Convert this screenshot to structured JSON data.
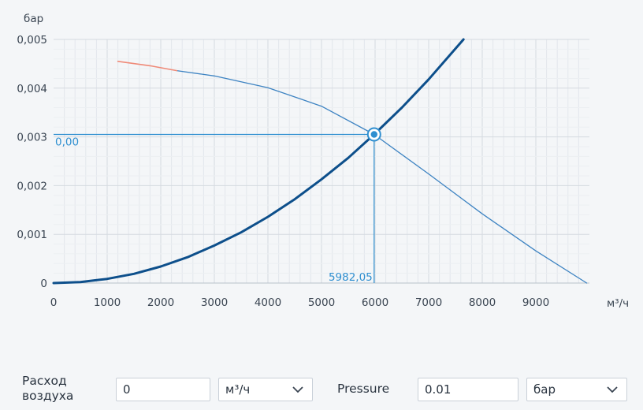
{
  "chart_data": {
    "type": "line",
    "x_unit": "м³/ч",
    "y_unit": "бар",
    "xlim": [
      0,
      10000
    ],
    "ylim": [
      0,
      0.005
    ],
    "x_ticks": [
      0,
      1000,
      2000,
      3000,
      4000,
      5000,
      6000,
      7000,
      8000,
      9000
    ],
    "y_ticks": [
      0,
      0.001,
      0.002,
      0.003,
      0.004,
      0.005
    ],
    "x_tick_labels": [
      "0",
      "1000",
      "2000",
      "3000",
      "4000",
      "5000",
      "6000",
      "7000",
      "8000",
      "9000"
    ],
    "y_tick_labels": [
      "0",
      "0,001",
      "0,002",
      "0,003",
      "0,004",
      "0,005"
    ],
    "grid": true,
    "series": [
      {
        "role": "system-curve",
        "color": "#0d4f8b",
        "x": [
          0,
          500,
          1000,
          1500,
          2000,
          2500,
          3000,
          3500,
          4000,
          4500,
          5000,
          5500,
          5982.05,
          6500,
          7000,
          7650
        ],
        "y": [
          0,
          2.1e-05,
          8.5e-05,
          0.00019,
          0.00034,
          0.00053,
          0.00077,
          0.00104,
          0.00136,
          0.00172,
          0.00213,
          0.00257,
          0.00305,
          0.0036,
          0.00418,
          0.005
        ]
      },
      {
        "role": "fan-curve",
        "color": "#3d83c2",
        "x": [
          2300,
          3000,
          4000,
          5000,
          5982.05,
          7000,
          8000,
          9000,
          9950
        ],
        "y": [
          0.00436,
          0.00425,
          0.00401,
          0.00363,
          0.00305,
          0.00224,
          0.00142,
          0.00066,
          0
        ]
      },
      {
        "role": "fan-curve-unstable",
        "color": "#ef8a78",
        "x": [
          1200,
          1800,
          2300
        ],
        "y": [
          0.00455,
          0.00446,
          0.00436
        ]
      }
    ],
    "operating_point": {
      "x": 5982.05,
      "y": 0.00305,
      "x_label": "5982,05",
      "y_label": "0,00"
    }
  },
  "controls": {
    "flow_label_line1": "Расход",
    "flow_label_line2": "воздуха",
    "flow_value": "0",
    "flow_unit": "м³/ч",
    "pressure_label": "Pressure",
    "pressure_value": "0.01",
    "pressure_unit": "бар"
  },
  "colors": {
    "accent": "#2f8fd0",
    "system": "#0d4f8b",
    "fan": "#3d83c2",
    "unstable": "#ef8a78"
  }
}
